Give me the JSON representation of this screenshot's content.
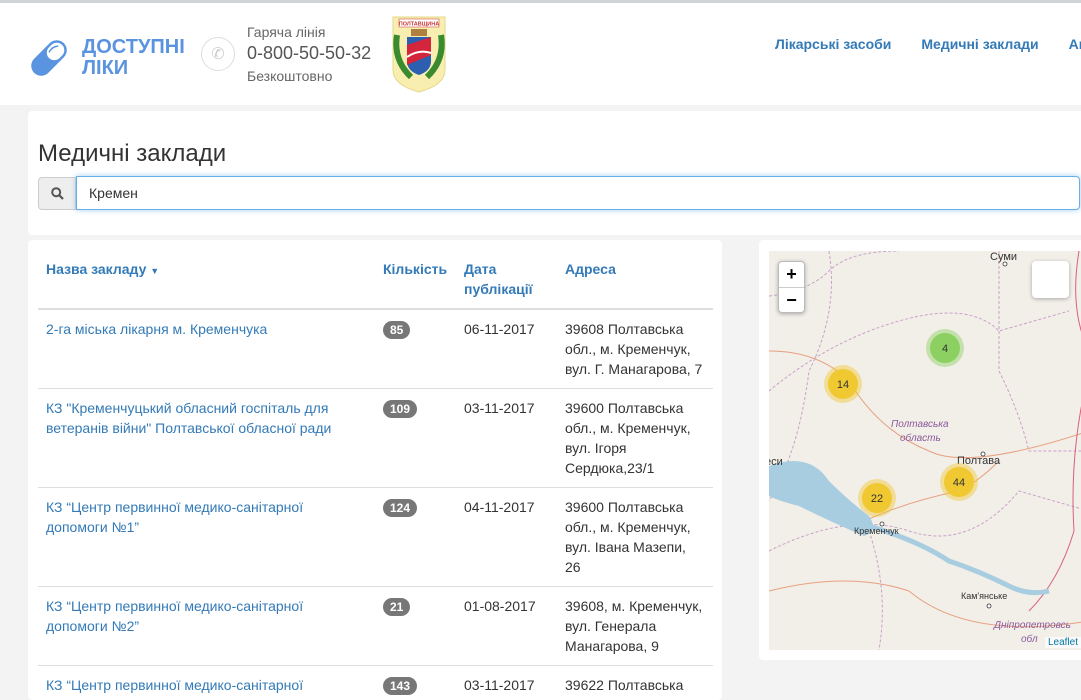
{
  "header": {
    "logo_line1": "ДОСТУПНІ",
    "logo_line2": "ЛІКИ",
    "hotline_label": "Гаряча лінія",
    "hotline_phone": "0-800-50-50-32",
    "hotline_note": "Безкоштовно",
    "coat_text": "ПОЛТАВЩИНА",
    "nav": [
      "Лікарські засоби",
      "Медичні заклади",
      "Аптеки"
    ]
  },
  "search": {
    "title": "Медичні заклади",
    "value": "Кремен",
    "icon": "search-icon"
  },
  "table": {
    "headers": [
      "Назва закладу",
      "Кількість",
      "Дата публікації",
      "Адреса"
    ],
    "rows": [
      {
        "name": "2-га міська лікарня м. Кременчука",
        "count": "85",
        "date": "06-11-2017",
        "address": "39608 Полтавська обл., м. Кременчук, вул. Г. Манагарова, 7"
      },
      {
        "name": "КЗ \"Кременчуцький обласний госпіталь для ветеранів війни\" Полтавської обласної ради",
        "count": "109",
        "date": "03-11-2017",
        "address": "39600 Полтавська обл., м. Кременчук, вул. Ігоря Сердюка,23/1"
      },
      {
        "name": "КЗ “Центр первинної медико-санітарної допомоги №1”",
        "count": "124",
        "date": "04-11-2017",
        "address": "39600 Полтавська обл., м. Кременчук, вул. Івана Мазепи, 26"
      },
      {
        "name": "КЗ “Центр первинної медико-санітарної допомоги №2”",
        "count": "21",
        "date": "01-08-2017",
        "address": "39608, м. Кременчук, вул. Генерала Манагарова, 9"
      },
      {
        "name": "КЗ “Центр первинної медико-санітарної",
        "count": "143",
        "date": "03-11-2017",
        "address": "39622 Полтавська"
      }
    ]
  },
  "map": {
    "zoom_in": "+",
    "zoom_out": "−",
    "attribution": "Leaflet",
    "labels": {
      "sumy": "Суми",
      "region1": "Полтавська",
      "region2": "область",
      "poltava": "Полтава",
      "kremenchuk": "Кременчук",
      "kamianske": "Кам'янське",
      "dnipro1": "Дніпропетровсь",
      "dnipro2": "обл",
      "cherkasy": "еси"
    },
    "clusters": [
      {
        "count": "4",
        "color": "#8cd062"
      },
      {
        "count": "14",
        "color": "#f0c832"
      },
      {
        "count": "22",
        "color": "#f0c832"
      },
      {
        "count": "44",
        "color": "#f0c832"
      }
    ]
  }
}
